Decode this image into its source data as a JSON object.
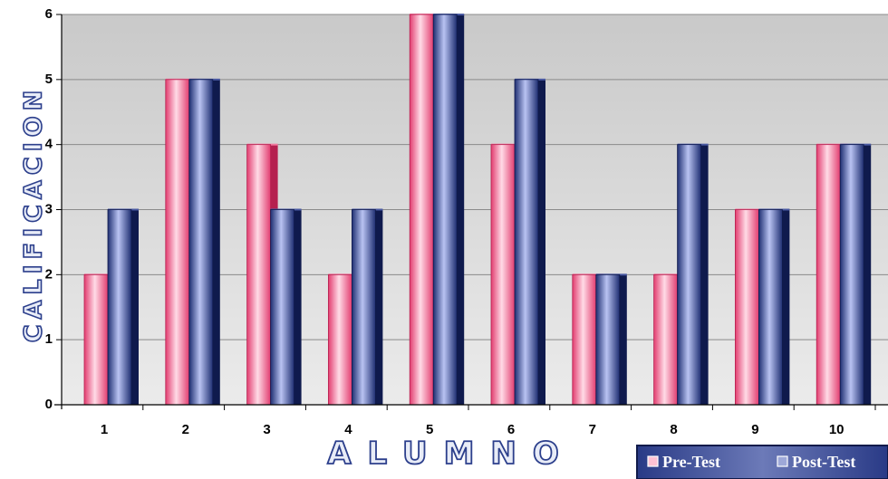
{
  "chart_data": {
    "type": "bar",
    "title": "",
    "xlabel": "ALUMNO",
    "ylabel": "CALIFICACION",
    "categories": [
      "1",
      "2",
      "3",
      "4",
      "5",
      "6",
      "7",
      "8",
      "9",
      "10"
    ],
    "yticks": [
      "0",
      "1",
      "2",
      "3",
      "4",
      "5",
      "6"
    ],
    "ylim": [
      0,
      6
    ],
    "grid": true,
    "legend_position": "bottom-right",
    "series": [
      {
        "name": "Pre-Test",
        "color": "#e8457a",
        "values": [
          2,
          5,
          4,
          2,
          6,
          4,
          2,
          2,
          3,
          4
        ]
      },
      {
        "name": "Post-Test",
        "color": "#2a3a80",
        "values": [
          3,
          5,
          3,
          3,
          6,
          5,
          2,
          4,
          3,
          4
        ]
      }
    ]
  }
}
